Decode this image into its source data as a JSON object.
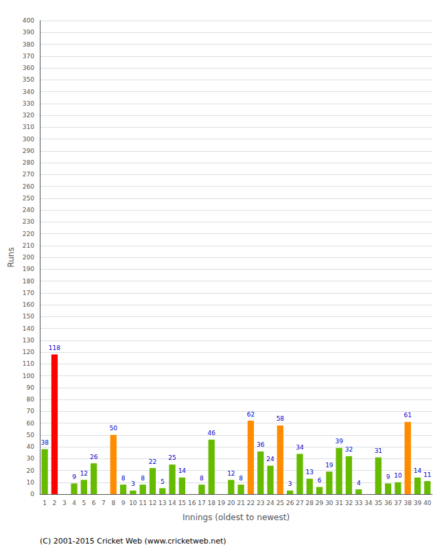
{
  "chart_data": {
    "type": "bar",
    "categories": [
      "1",
      "2",
      "3",
      "4",
      "5",
      "6",
      "7",
      "8",
      "9",
      "10",
      "11",
      "12",
      "13",
      "14",
      "15",
      "16",
      "17",
      "18",
      "19",
      "20",
      "21",
      "22",
      "23",
      "24",
      "25",
      "26",
      "27",
      "28",
      "29",
      "30",
      "31",
      "32",
      "33",
      "34",
      "35",
      "36",
      "37",
      "38",
      "39",
      "40"
    ],
    "values": [
      38,
      118,
      0,
      9,
      12,
      26,
      0,
      50,
      8,
      3,
      8,
      22,
      5,
      25,
      14,
      0,
      8,
      46,
      0,
      12,
      8,
      62,
      36,
      24,
      58,
      3,
      34,
      13,
      6,
      19,
      39,
      32,
      4,
      0,
      31,
      9,
      10,
      61,
      14,
      11
    ],
    "value_labels": [
      "38",
      "118",
      null,
      "9",
      "12",
      "26",
      null,
      "50",
      "8",
      "3",
      "8",
      "22",
      "5",
      "25",
      "14",
      null,
      "8",
      "46",
      null,
      "12",
      "8",
      "62",
      "36",
      "24",
      "58",
      "3",
      "34",
      "13",
      "6",
      "19",
      "39",
      "32",
      "4",
      null,
      "31",
      "9",
      "10",
      "61",
      "14",
      "11"
    ],
    "colors": [
      "#66bb00",
      "#ff0000",
      "#66bb00",
      "#66bb00",
      "#66bb00",
      "#66bb00",
      "#66bb00",
      "#ff8c00",
      "#66bb00",
      "#66bb00",
      "#66bb00",
      "#66bb00",
      "#66bb00",
      "#66bb00",
      "#66bb00",
      "#66bb00",
      "#66bb00",
      "#66bb00",
      "#66bb00",
      "#66bb00",
      "#66bb00",
      "#ff8c00",
      "#66bb00",
      "#66bb00",
      "#ff8c00",
      "#66bb00",
      "#66bb00",
      "#66bb00",
      "#66bb00",
      "#66bb00",
      "#66bb00",
      "#66bb00",
      "#66bb00",
      "#66bb00",
      "#66bb00",
      "#66bb00",
      "#66bb00",
      "#ff8c00",
      "#66bb00",
      "#66bb00"
    ],
    "xlabel": "Innings (oldest to newest)",
    "ylabel": "Runs",
    "ylim": [
      0,
      400
    ],
    "yticks": [
      0,
      10,
      20,
      30,
      40,
      50,
      60,
      70,
      80,
      90,
      100,
      110,
      120,
      130,
      140,
      150,
      160,
      170,
      180,
      190,
      200,
      210,
      220,
      230,
      240,
      250,
      260,
      270,
      280,
      290,
      300,
      310,
      320,
      330,
      340,
      350,
      360,
      370,
      380,
      390,
      400
    ],
    "annotations": [
      "(C) 2001-2015 Cricket Web (www.cricketweb.net)"
    ],
    "data_labels": true,
    "grid": true
  }
}
